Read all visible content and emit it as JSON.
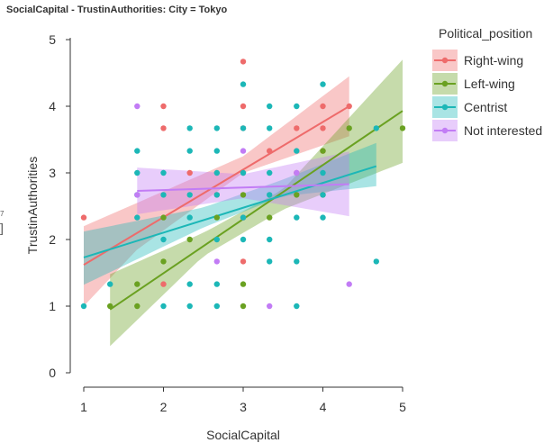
{
  "chart_data": {
    "type": "scatter",
    "title": "SocialCapital - TrustinAuthorities: City = Tokyo",
    "xlabel": "SocialCapital",
    "ylabel": "TrustinAuthorities",
    "xlim": [
      0.9,
      5.05
    ],
    "ylim": [
      -0.1,
      5.1
    ],
    "xticks": [
      1,
      2,
      3,
      4,
      5
    ],
    "yticks": [
      0,
      1,
      2,
      3,
      4,
      5
    ],
    "grid": false,
    "legend_position": "right",
    "legend_title": "Political_position",
    "series": [
      {
        "name": "Right-wing",
        "color": "#ee6b6b",
        "points": [
          [
            1,
            2.33
          ],
          [
            2,
            4
          ],
          [
            2,
            3.67
          ],
          [
            2,
            1.33
          ],
          [
            2.33,
            3
          ],
          [
            2.67,
            2.67
          ],
          [
            3,
            4.67
          ],
          [
            3,
            4
          ],
          [
            3,
            3.67
          ],
          [
            3,
            3
          ],
          [
            3,
            2.33
          ],
          [
            3,
            1.67
          ],
          [
            3.33,
            3.33
          ],
          [
            3.67,
            3.67
          ],
          [
            3.67,
            3
          ],
          [
            4,
            4
          ],
          [
            4,
            3.67
          ],
          [
            4,
            3.33
          ],
          [
            4.33,
            4
          ]
        ],
        "fit": [
          [
            1,
            1.62
          ],
          [
            4.33,
            4
          ]
        ],
        "ci_low": [
          [
            1,
            1
          ],
          [
            1.67,
            1.85
          ],
          [
            3,
            3
          ],
          [
            4.33,
            3.55
          ]
        ],
        "ci_high": [
          [
            1,
            2.2
          ],
          [
            1.67,
            2.55
          ],
          [
            3,
            3.25
          ],
          [
            4.33,
            4.45
          ]
        ]
      },
      {
        "name": "Left-wing",
        "color": "#6aa121",
        "points": [
          [
            1.33,
            1
          ],
          [
            1.67,
            1
          ],
          [
            1.67,
            1.33
          ],
          [
            2,
            1.67
          ],
          [
            2,
            2.33
          ],
          [
            2.33,
            2
          ],
          [
            2.67,
            2.33
          ],
          [
            3,
            1.33
          ],
          [
            3,
            1
          ],
          [
            3,
            2.67
          ],
          [
            3.33,
            2.33
          ],
          [
            3.67,
            2.67
          ],
          [
            4,
            2.67
          ],
          [
            4,
            3.33
          ],
          [
            4.33,
            3.67
          ],
          [
            5,
            3.67
          ]
        ],
        "fit": [
          [
            1.33,
            0.95
          ],
          [
            5,
            3.93
          ]
        ],
        "ci_low": [
          [
            1.33,
            0.4
          ],
          [
            2.5,
            1.75
          ],
          [
            3.5,
            2.45
          ],
          [
            5,
            3.15
          ]
        ],
        "ci_high": [
          [
            1.33,
            1.48
          ],
          [
            2.5,
            2.1
          ],
          [
            3.5,
            2.75
          ],
          [
            5,
            4.7
          ]
        ]
      },
      {
        "name": "Centrist",
        "color": "#1cb7b7",
        "points": [
          [
            1,
            1
          ],
          [
            1.33,
            1.33
          ],
          [
            1.67,
            3.33
          ],
          [
            1.67,
            3
          ],
          [
            1.67,
            2.67
          ],
          [
            1.67,
            2.33
          ],
          [
            2,
            3
          ],
          [
            2,
            2.67
          ],
          [
            2,
            2
          ],
          [
            2,
            1
          ],
          [
            2.33,
            3.67
          ],
          [
            2.33,
            3.33
          ],
          [
            2.33,
            2.67
          ],
          [
            2.33,
            2.33
          ],
          [
            2.33,
            1.33
          ],
          [
            2.33,
            1
          ],
          [
            2.67,
            3.67
          ],
          [
            2.67,
            3.33
          ],
          [
            2.67,
            3
          ],
          [
            2.67,
            2.67
          ],
          [
            2.67,
            2
          ],
          [
            2.67,
            1.33
          ],
          [
            2.67,
            1
          ],
          [
            3,
            4.33
          ],
          [
            3,
            3.67
          ],
          [
            3,
            3
          ],
          [
            3,
            2.33
          ],
          [
            3,
            2
          ],
          [
            3.33,
            4
          ],
          [
            3.33,
            3.67
          ],
          [
            3.33,
            3
          ],
          [
            3.33,
            2.67
          ],
          [
            3.33,
            2
          ],
          [
            3.33,
            1.67
          ],
          [
            3.67,
            4
          ],
          [
            3.67,
            3.33
          ],
          [
            3.67,
            2.33
          ],
          [
            3.67,
            1.67
          ],
          [
            3.67,
            1
          ],
          [
            4,
            4.33
          ],
          [
            4,
            3
          ],
          [
            4,
            2.67
          ],
          [
            4,
            2.33
          ],
          [
            4.67,
            3.67
          ],
          [
            4.67,
            1.67
          ]
        ],
        "fit": [
          [
            1,
            1.73
          ],
          [
            4.67,
            3.1
          ]
        ],
        "ci_low": [
          [
            1,
            1.32
          ],
          [
            2.5,
            2.18
          ],
          [
            3.5,
            2.65
          ],
          [
            4.67,
            2.8
          ]
        ],
        "ci_high": [
          [
            1,
            2.12
          ],
          [
            2.5,
            2.48
          ],
          [
            3.5,
            2.9
          ],
          [
            4.67,
            3.45
          ]
        ]
      },
      {
        "name": "Not interested",
        "color": "#c27cf5",
        "points": [
          [
            1.67,
            4
          ],
          [
            1.67,
            2.67
          ],
          [
            2.67,
            1.67
          ],
          [
            3,
            3.33
          ],
          [
            3.33,
            1
          ],
          [
            3.67,
            3
          ],
          [
            4.33,
            1.33
          ]
        ],
        "fit": [
          [
            1.67,
            2.73
          ],
          [
            4.33,
            2.83
          ]
        ],
        "ci_low": [
          [
            1.67,
            2.38
          ],
          [
            3,
            2.62
          ],
          [
            4.33,
            2.35
          ]
        ],
        "ci_high": [
          [
            1.67,
            3.08
          ],
          [
            3,
            2.98
          ],
          [
            4.33,
            3.32
          ]
        ]
      }
    ]
  },
  "edge_text": {
    "top": "7",
    "bottom": "]"
  }
}
